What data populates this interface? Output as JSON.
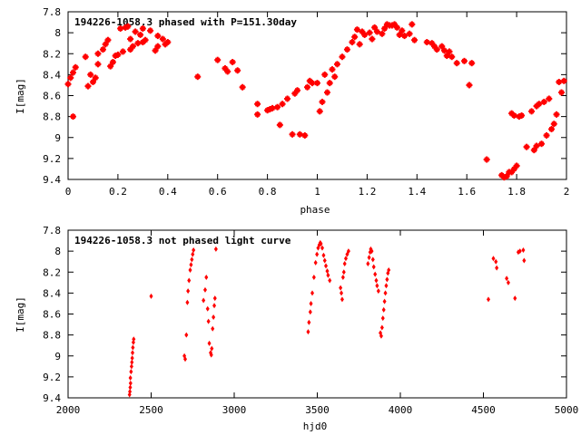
{
  "chart_data": [
    {
      "type": "scatter",
      "title": "194226-1058.3 phased with P=151.30day",
      "xlabel": "phase",
      "ylabel": "I[mag]",
      "xlim": [
        0,
        2
      ],
      "ylim": [
        9.4,
        7.8
      ],
      "y_inverted": true,
      "xticks": [
        "0",
        "0.2",
        "0.4",
        "0.6",
        "0.8",
        "1",
        "1.2",
        "1.4",
        "1.6",
        "1.8",
        "2"
      ],
      "yticks": [
        "7.8",
        "8",
        "8.2",
        "8.4",
        "8.6",
        "8.8",
        "9",
        "9.2",
        "9.4"
      ],
      "grid": false,
      "marker": "star",
      "color": "#ff0000",
      "series": [
        {
          "points": [
            [
              0.0,
              8.49
            ],
            [
              0.01,
              8.43
            ],
            [
              0.02,
              8.38
            ],
            [
              0.02,
              8.8
            ],
            [
              0.03,
              8.33
            ],
            [
              0.07,
              8.23
            ],
            [
              0.08,
              8.51
            ],
            [
              0.09,
              8.4
            ],
            [
              0.1,
              8.47
            ],
            [
              0.11,
              8.43
            ],
            [
              0.12,
              8.3
            ],
            [
              0.12,
              8.2
            ],
            [
              0.14,
              8.16
            ],
            [
              0.15,
              8.11
            ],
            [
              0.16,
              8.07
            ],
            [
              0.18,
              8.28
            ],
            [
              0.17,
              8.32
            ],
            [
              0.19,
              8.22
            ],
            [
              0.2,
              8.21
            ],
            [
              0.22,
              8.18
            ],
            [
              0.21,
              7.96
            ],
            [
              0.23,
              7.95
            ],
            [
              0.24,
              7.94
            ],
            [
              0.25,
              8.16
            ],
            [
              0.26,
              8.13
            ],
            [
              0.25,
              8.06
            ],
            [
              0.27,
              7.99
            ],
            [
              0.28,
              8.1
            ],
            [
              0.29,
              8.02
            ],
            [
              0.3,
              8.09
            ],
            [
              0.3,
              7.96
            ],
            [
              0.31,
              8.07
            ],
            [
              0.33,
              7.98
            ],
            [
              0.35,
              8.17
            ],
            [
              0.36,
              8.13
            ],
            [
              0.36,
              8.03
            ],
            [
              0.38,
              8.06
            ],
            [
              0.4,
              8.09
            ],
            [
              0.39,
              8.11
            ],
            [
              0.52,
              8.42
            ],
            [
              0.6,
              8.26
            ],
            [
              0.63,
              8.34
            ],
            [
              0.64,
              8.37
            ],
            [
              0.66,
              8.28
            ],
            [
              0.68,
              8.36
            ],
            [
              0.7,
              8.52
            ],
            [
              0.76,
              8.68
            ],
            [
              0.76,
              8.78
            ],
            [
              0.8,
              8.74
            ],
            [
              0.81,
              8.73
            ],
            [
              0.82,
              8.72
            ],
            [
              0.84,
              8.71
            ],
            [
              0.85,
              8.88
            ],
            [
              0.86,
              8.68
            ],
            [
              0.88,
              8.63
            ],
            [
              0.9,
              8.97
            ],
            [
              0.91,
              8.58
            ],
            [
              0.92,
              8.55
            ],
            [
              0.93,
              8.97
            ],
            [
              0.95,
              8.98
            ],
            [
              0.96,
              8.52
            ],
            [
              0.97,
              8.46
            ],
            [
              0.98,
              8.48
            ],
            [
              1.0,
              8.48
            ],
            [
              1.01,
              8.75
            ],
            [
              1.02,
              8.66
            ],
            [
              1.03,
              8.4
            ],
            [
              1.04,
              8.57
            ],
            [
              1.05,
              8.48
            ],
            [
              1.06,
              8.35
            ],
            [
              1.07,
              8.42
            ],
            [
              1.08,
              8.3
            ],
            [
              1.1,
              8.23
            ],
            [
              1.12,
              8.16
            ],
            [
              1.14,
              8.09
            ],
            [
              1.15,
              8.04
            ],
            [
              1.16,
              7.97
            ],
            [
              1.17,
              8.11
            ],
            [
              1.18,
              7.99
            ],
            [
              1.19,
              8.02
            ],
            [
              1.21,
              8.0
            ],
            [
              1.22,
              8.06
            ],
            [
              1.23,
              7.95
            ],
            [
              1.24,
              7.99
            ],
            [
              1.26,
              8.01
            ],
            [
              1.27,
              7.96
            ],
            [
              1.28,
              7.92
            ],
            [
              1.29,
              7.93
            ],
            [
              1.3,
              7.93
            ],
            [
              1.31,
              7.92
            ],
            [
              1.32,
              7.95
            ],
            [
              1.33,
              8.02
            ],
            [
              1.34,
              7.98
            ],
            [
              1.35,
              8.03
            ],
            [
              1.37,
              8.01
            ],
            [
              1.38,
              7.92
            ],
            [
              1.39,
              8.07
            ],
            [
              1.44,
              8.09
            ],
            [
              1.46,
              8.1
            ],
            [
              1.47,
              8.13
            ],
            [
              1.48,
              8.16
            ],
            [
              1.5,
              8.13
            ],
            [
              1.51,
              8.17
            ],
            [
              1.52,
              8.22
            ],
            [
              1.53,
              8.18
            ],
            [
              1.54,
              8.23
            ],
            [
              1.56,
              8.29
            ],
            [
              1.59,
              8.27
            ],
            [
              1.61,
              8.5
            ],
            [
              1.62,
              8.29
            ],
            [
              1.68,
              9.21
            ],
            [
              1.74,
              9.36
            ],
            [
              1.75,
              9.38
            ],
            [
              1.76,
              9.37
            ],
            [
              1.77,
              9.33
            ],
            [
              1.78,
              9.33
            ],
            [
              1.79,
              9.3
            ],
            [
              1.8,
              9.27
            ],
            [
              1.78,
              8.77
            ],
            [
              1.79,
              8.79
            ],
            [
              1.81,
              8.8
            ],
            [
              1.82,
              8.79
            ],
            [
              1.84,
              9.09
            ],
            [
              1.86,
              8.75
            ],
            [
              1.88,
              8.7
            ],
            [
              1.87,
              9.12
            ],
            [
              1.88,
              9.08
            ],
            [
              1.89,
              8.68
            ],
            [
              1.9,
              9.06
            ],
            [
              1.91,
              8.66
            ],
            [
              1.92,
              8.98
            ],
            [
              1.93,
              8.63
            ],
            [
              1.94,
              8.92
            ],
            [
              1.95,
              8.87
            ],
            [
              1.96,
              8.78
            ],
            [
              1.97,
              8.47
            ],
            [
              1.98,
              8.57
            ],
            [
              1.99,
              8.46
            ]
          ]
        }
      ]
    },
    {
      "type": "scatter",
      "title": "194226-1058.3 not phased light curve",
      "xlabel": "hjd0",
      "ylabel": "I[mag]",
      "xlim": [
        2000,
        5000
      ],
      "ylim": [
        9.4,
        7.8
      ],
      "y_inverted": true,
      "xticks": [
        "2000",
        "2500",
        "3000",
        "3500",
        "4000",
        "4500",
        "5000"
      ],
      "yticks": [
        "7.8",
        "8",
        "8.2",
        "8.4",
        "8.6",
        "8.8",
        "9",
        "9.2",
        "9.4"
      ],
      "grid": false,
      "marker": "diamond",
      "color": "#ff0000",
      "series": [
        {
          "points": [
            [
              2370,
              9.37
            ],
            [
              2372,
              9.34
            ],
            [
              2374,
              9.3
            ],
            [
              2376,
              9.26
            ],
            [
              2375,
              9.21
            ],
            [
              2379,
              9.15
            ],
            [
              2382,
              9.1
            ],
            [
              2384,
              9.06
            ],
            [
              2386,
              9.02
            ],
            [
              2388,
              8.97
            ],
            [
              2390,
              8.92
            ],
            [
              2393,
              8.87
            ],
            [
              2395,
              8.84
            ],
            [
              2500,
              8.43
            ],
            [
              2700,
              9.0
            ],
            [
              2705,
              9.03
            ],
            [
              2712,
              8.8
            ],
            [
              2718,
              8.49
            ],
            [
              2722,
              8.38
            ],
            [
              2728,
              8.28
            ],
            [
              2735,
              8.18
            ],
            [
              2740,
              8.13
            ],
            [
              2745,
              8.08
            ],
            [
              2750,
              8.03
            ],
            [
              2755,
              7.99
            ],
            [
              2815,
              8.47
            ],
            [
              2825,
              8.37
            ],
            [
              2832,
              8.25
            ],
            [
              2840,
              8.55
            ],
            [
              2845,
              8.67
            ],
            [
              2850,
              8.88
            ],
            [
              2858,
              8.97
            ],
            [
              2862,
              8.99
            ],
            [
              2865,
              8.93
            ],
            [
              2870,
              8.74
            ],
            [
              2875,
              8.63
            ],
            [
              2880,
              8.52
            ],
            [
              2884,
              8.45
            ],
            [
              2890,
              7.98
            ],
            [
              3445,
              8.77
            ],
            [
              3450,
              8.68
            ],
            [
              3458,
              8.58
            ],
            [
              3462,
              8.5
            ],
            [
              3470,
              8.4
            ],
            [
              3480,
              8.25
            ],
            [
              3490,
              8.11
            ],
            [
              3498,
              8.03
            ],
            [
              3505,
              7.97
            ],
            [
              3512,
              7.94
            ],
            [
              3518,
              7.92
            ],
            [
              3522,
              7.93
            ],
            [
              3530,
              7.97
            ],
            [
              3538,
              8.04
            ],
            [
              3545,
              8.09
            ],
            [
              3552,
              8.14
            ],
            [
              3560,
              8.19
            ],
            [
              3565,
              8.23
            ],
            [
              3575,
              8.28
            ],
            [
              3640,
              8.35
            ],
            [
              3645,
              8.4
            ],
            [
              3650,
              8.46
            ],
            [
              3655,
              8.25
            ],
            [
              3660,
              8.2
            ],
            [
              3665,
              8.12
            ],
            [
              3672,
              8.07
            ],
            [
              3680,
              8.03
            ],
            [
              3688,
              8.0
            ],
            [
              3805,
              8.12
            ],
            [
              3812,
              8.06
            ],
            [
              3818,
              8.01
            ],
            [
              3822,
              7.98
            ],
            [
              3828,
              8.0
            ],
            [
              3835,
              8.08
            ],
            [
              3840,
              8.15
            ],
            [
              3848,
              8.22
            ],
            [
              3855,
              8.28
            ],
            [
              3860,
              8.33
            ],
            [
              3868,
              8.38
            ],
            [
              3880,
              8.78
            ],
            [
              3885,
              8.81
            ],
            [
              3890,
              8.73
            ],
            [
              3895,
              8.64
            ],
            [
              3900,
              8.56
            ],
            [
              3905,
              8.48
            ],
            [
              3910,
              8.4
            ],
            [
              3915,
              8.33
            ],
            [
              3920,
              8.27
            ],
            [
              3925,
              8.21
            ],
            [
              3930,
              8.18
            ],
            [
              4530,
              8.46
            ],
            [
              4560,
              8.07
            ],
            [
              4575,
              8.1
            ],
            [
              4580,
              8.16
            ],
            [
              4640,
              8.26
            ],
            [
              4650,
              8.3
            ],
            [
              4690,
              8.45
            ],
            [
              4710,
              8.01
            ],
            [
              4720,
              8.0
            ],
            [
              4740,
              7.99
            ],
            [
              4745,
              8.09
            ]
          ]
        }
      ]
    }
  ]
}
